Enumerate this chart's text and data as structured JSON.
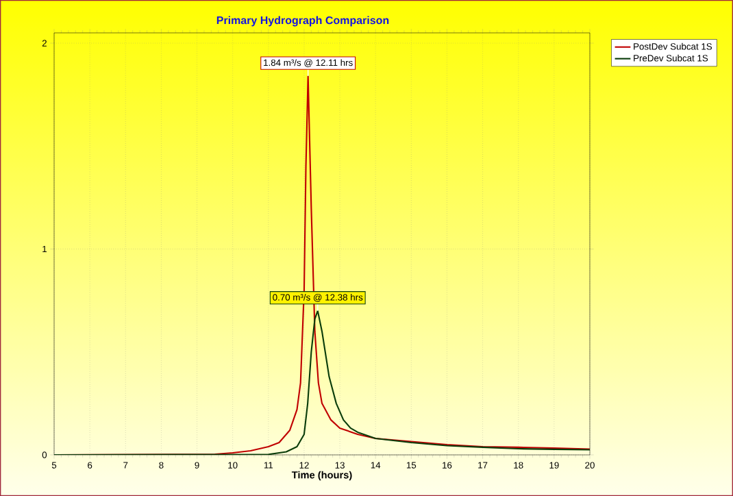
{
  "chart_data": {
    "type": "line",
    "title": "Primary Hydrograph Comparison",
    "xlabel": "Time  (hours)",
    "xlim": [
      5,
      20
    ],
    "ylim": [
      0,
      2.05
    ],
    "xticks": [
      5,
      6,
      7,
      8,
      9,
      10,
      11,
      12,
      13,
      14,
      15,
      16,
      17,
      18,
      19,
      20
    ],
    "yticks": [
      0,
      1,
      2
    ],
    "grid": true,
    "legend": "top right",
    "marker": "none",
    "line_style": "solid",
    "series": [
      {
        "name": "PostDev Subcat 1S",
        "color": "#c00000",
        "x": [
          5,
          9.5,
          10,
          10.5,
          11,
          11.3,
          11.6,
          11.8,
          11.9,
          12.0,
          12.05,
          12.11,
          12.2,
          12.3,
          12.4,
          12.5,
          12.75,
          13,
          13.5,
          14,
          15,
          16,
          17,
          18,
          19,
          20
        ],
        "values": [
          0,
          0.003,
          0.01,
          0.02,
          0.04,
          0.06,
          0.12,
          0.22,
          0.35,
          0.8,
          1.4,
          1.84,
          1.2,
          0.6,
          0.35,
          0.25,
          0.17,
          0.13,
          0.1,
          0.08,
          0.065,
          0.05,
          0.04,
          0.037,
          0.033,
          0.028
        ]
      },
      {
        "name": "PreDev Subcat 1S",
        "color": "#0b3d0b",
        "x": [
          5,
          11,
          11.5,
          11.8,
          12.0,
          12.1,
          12.2,
          12.3,
          12.38,
          12.5,
          12.7,
          12.9,
          13.1,
          13.3,
          13.5,
          14,
          15,
          16,
          17,
          18,
          19,
          20
        ],
        "values": [
          0,
          0.002,
          0.015,
          0.04,
          0.1,
          0.25,
          0.5,
          0.66,
          0.7,
          0.6,
          0.38,
          0.25,
          0.17,
          0.13,
          0.11,
          0.08,
          0.06,
          0.045,
          0.037,
          0.03,
          0.027,
          0.025
        ]
      }
    ],
    "annotations": [
      {
        "text": "1.84 m³/s @ 12.11 hrs",
        "x": 12.11,
        "y": 1.84
      },
      {
        "text": "0.70 m³/s @ 12.38 hrs",
        "x": 12.38,
        "y": 0.7
      }
    ]
  }
}
